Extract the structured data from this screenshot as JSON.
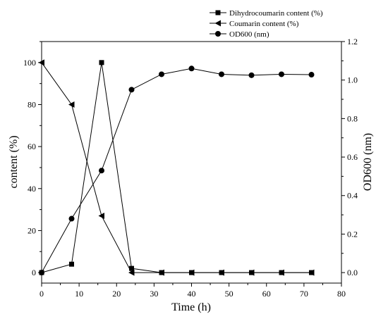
{
  "chart_data": {
    "type": "line",
    "x": [
      0,
      8,
      16,
      24,
      32,
      40,
      48,
      56,
      64,
      72
    ],
    "xlabel": "Time (h)",
    "ylabel": "content (%)",
    "y2label": "OD600 (nm)",
    "xlim": [
      0,
      80
    ],
    "ylim": [
      -5,
      110
    ],
    "y2lim": [
      -0.0545,
      1.2
    ],
    "x_ticks": [
      0,
      10,
      20,
      30,
      40,
      50,
      60,
      70,
      80
    ],
    "y_ticks": [
      0,
      20,
      40,
      60,
      80,
      100
    ],
    "y2_ticks": [
      "0.0",
      "0.2",
      "0.4",
      "0.6",
      "0.8",
      "1.0",
      "1.2"
    ],
    "grid": false,
    "legend_position": "top-right",
    "series": [
      {
        "name": "Dihydrocoumarin content (%)",
        "axis": "left",
        "marker": "square",
        "values": [
          0,
          4,
          100,
          2,
          0,
          0,
          0,
          0,
          0,
          0
        ]
      },
      {
        "name": "Coumarin content (%)",
        "axis": "left",
        "marker": "triangle-left",
        "values": [
          100,
          80,
          27,
          0,
          0,
          0,
          0,
          0,
          0,
          0
        ]
      },
      {
        "name": "OD600 (nm)",
        "axis": "right",
        "marker": "circle",
        "values": [
          0,
          0.28,
          0.53,
          0.95,
          1.03,
          1.06,
          1.03,
          1.025,
          1.03,
          1.028
        ]
      }
    ]
  }
}
